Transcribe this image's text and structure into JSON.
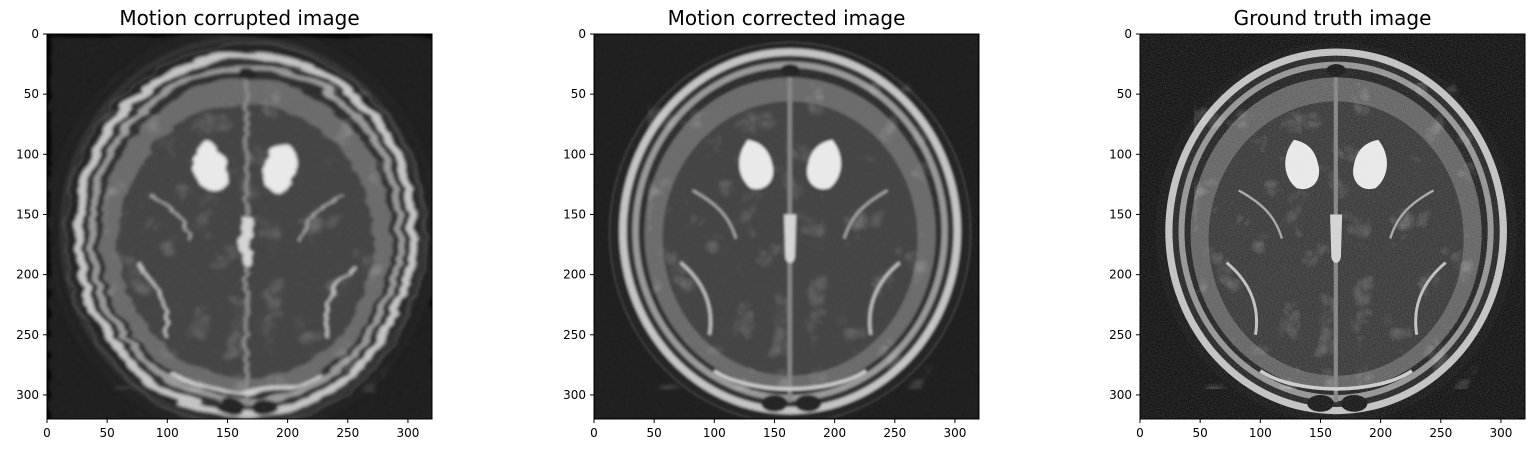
{
  "figure": {
    "background": "#ffffff",
    "image_background": "#050505",
    "colormap": "gray"
  },
  "panels": [
    {
      "title": "Motion corrupted image",
      "image_kind": "mri-axial-brain-motion-corrupted",
      "xlim": [
        0,
        320
      ],
      "ylim": [
        320,
        0
      ],
      "xticks": [
        0,
        50,
        100,
        150,
        200,
        250,
        300
      ],
      "yticks": [
        0,
        50,
        100,
        150,
        200,
        250,
        300
      ]
    },
    {
      "title": "Motion corrected image",
      "image_kind": "mri-axial-brain-corrected",
      "xlim": [
        0,
        320
      ],
      "ylim": [
        320,
        0
      ],
      "xticks": [
        0,
        50,
        100,
        150,
        200,
        250,
        300
      ],
      "yticks": [
        0,
        50,
        100,
        150,
        200,
        250,
        300
      ]
    },
    {
      "title": "Ground truth image",
      "image_kind": "mri-axial-brain-ground-truth",
      "xlim": [
        0,
        320
      ],
      "ylim": [
        320,
        0
      ],
      "xticks": [
        0,
        50,
        100,
        150,
        200,
        250,
        300
      ],
      "yticks": [
        0,
        50,
        100,
        150,
        200,
        250,
        300
      ]
    }
  ]
}
